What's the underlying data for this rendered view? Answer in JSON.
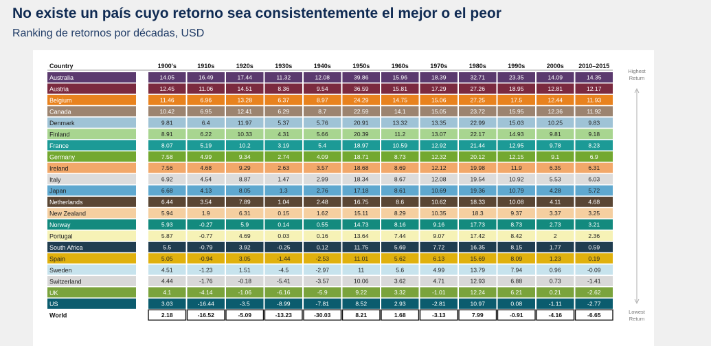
{
  "title": "No existe un país cuyo retorno sea consistentemente el mejor o el peor",
  "subtitle": "Ranking de retornos por décadas, USD",
  "legend": {
    "top": [
      "Highest",
      "Return"
    ],
    "bottom": [
      "Lowest",
      "Return"
    ]
  },
  "chart_data": {
    "type": "table",
    "corner_label": "Country",
    "columns": [
      "1900's",
      "1910s",
      "1920s",
      "1930s",
      "1940s",
      "1950s",
      "1960s",
      "1970s",
      "1980s",
      "1990s",
      "2000s",
      "2010–2015"
    ],
    "rows": [
      {
        "country": "Australia",
        "color": "#5b3a6e",
        "values": [
          14.05,
          16.49,
          17.44,
          11.32,
          12.08,
          39.86,
          15.96,
          18.39,
          32.71,
          23.35,
          14.09,
          14.35
        ]
      },
      {
        "country": "Austria",
        "color": "#7b2a3f",
        "values": [
          12.45,
          11.06,
          14.51,
          8.36,
          9.54,
          36.59,
          15.81,
          17.29,
          27.26,
          18.95,
          12.81,
          12.17
        ]
      },
      {
        "country": "Belgium",
        "color": "#e8821e",
        "values": [
          11.46,
          6.96,
          13.28,
          6.37,
          8.97,
          24.29,
          14.75,
          15.06,
          27.25,
          17.5,
          12.44,
          11.93
        ]
      },
      {
        "country": "Canada",
        "color": "#9c8470",
        "values": [
          10.42,
          6.95,
          12.41,
          6.29,
          8.7,
          22.59,
          14.1,
          15.05,
          23.72,
          15.95,
          12.36,
          11.92
        ]
      },
      {
        "country": "Denmark",
        "color": "#9fc3d6",
        "values": [
          9.81,
          6.4,
          11.97,
          5.37,
          5.76,
          20.91,
          13.32,
          13.35,
          22.99,
          15.03,
          10.25,
          9.83
        ]
      },
      {
        "country": "Finland",
        "color": "#a8d590",
        "values": [
          8.91,
          6.22,
          10.33,
          4.31,
          5.66,
          20.39,
          11.2,
          13.07,
          22.17,
          14.93,
          9.81,
          9.18
        ]
      },
      {
        "country": "France",
        "color": "#1c9a96",
        "values": [
          8.07,
          5.19,
          10.2,
          3.19,
          5.4,
          18.97,
          10.59,
          12.92,
          21.44,
          12.95,
          9.78,
          8.23
        ]
      },
      {
        "country": "Germany",
        "color": "#73a830",
        "values": [
          7.58,
          4.99,
          9.34,
          2.74,
          4.09,
          18.71,
          8.73,
          12.32,
          20.12,
          12.15,
          9.1,
          6.9
        ]
      },
      {
        "country": "Ireland",
        "color": "#f2a86a",
        "values": [
          7.56,
          4.68,
          9.29,
          2.63,
          3.57,
          18.68,
          8.69,
          12.12,
          19.98,
          11.9,
          6.35,
          6.31
        ]
      },
      {
        "country": "Italy",
        "color": "#dcdcdc",
        "values": [
          6.92,
          4.54,
          8.87,
          1.47,
          2.99,
          18.34,
          8.67,
          12.08,
          19.54,
          10.92,
          5.53,
          6.03
        ]
      },
      {
        "country": "Japan",
        "color": "#5fa8cf",
        "values": [
          6.68,
          4.13,
          8.05,
          1.3,
          2.76,
          17.18,
          8.61,
          10.69,
          19.36,
          10.79,
          4.28,
          5.72
        ]
      },
      {
        "country": "Netherlands",
        "color": "#5a4634",
        "values": [
          6.44,
          3.54,
          7.89,
          1.04,
          2.48,
          16.75,
          8.6,
          10.62,
          18.33,
          10.08,
          4.11,
          4.68
        ]
      },
      {
        "country": "New Zealand",
        "color": "#f5cfa0",
        "values": [
          5.94,
          1.9,
          6.31,
          0.15,
          1.62,
          15.11,
          8.29,
          10.35,
          18.3,
          9.37,
          3.37,
          3.25
        ]
      },
      {
        "country": "Norway",
        "color": "#138a7e",
        "values": [
          5.93,
          -0.27,
          5.9,
          0.14,
          0.55,
          14.73,
          8.16,
          9.16,
          17.73,
          8.73,
          2.73,
          3.21
        ]
      },
      {
        "country": "Portugal",
        "color": "#f6f2b6",
        "values": [
          5.87,
          -0.77,
          4.69,
          0.03,
          0.16,
          13.64,
          7.44,
          9.07,
          17.42,
          8.42,
          2,
          2.36
        ]
      },
      {
        "country": "South Africa",
        "color": "#203d50",
        "values": [
          5.5,
          -0.79,
          3.92,
          -0.25,
          0.12,
          11.75,
          5.69,
          7.72,
          16.35,
          8.15,
          1.77,
          0.59
        ]
      },
      {
        "country": "Spain",
        "color": "#e0b10e",
        "values": [
          5.05,
          -0.94,
          3.05,
          -1.44,
          -2.53,
          11.01,
          5.62,
          6.13,
          15.69,
          8.09,
          1.23,
          0.19
        ]
      },
      {
        "country": "Sweden",
        "color": "#c7e3ed",
        "values": [
          4.51,
          -1.23,
          1.51,
          -4.5,
          -2.97,
          11,
          5.6,
          4.99,
          13.79,
          7.94,
          0.96,
          -0.09
        ]
      },
      {
        "country": "Switzerland",
        "color": "#d8d8d8",
        "values": [
          4.44,
          -1.76,
          -0.18,
          -5.41,
          -3.57,
          10.06,
          3.62,
          4.71,
          12.93,
          6.88,
          0.73,
          -1.41
        ]
      },
      {
        "country": "UK",
        "color": "#7aa33c",
        "values": [
          4.1,
          -4.14,
          -1.06,
          -6.16,
          -5.9,
          9.22,
          3.32,
          -1.01,
          12.24,
          6.21,
          0.21,
          -2.62
        ]
      },
      {
        "country": "US",
        "color": "#0b5c6e",
        "values": [
          3.03,
          -16.44,
          -3.5,
          -8.99,
          -7.81,
          8.52,
          2.93,
          -2.81,
          10.97,
          0.08,
          -1.11,
          -2.77
        ]
      },
      {
        "country": "World",
        "color": "#ffffff",
        "values": [
          2.18,
          -16.52,
          -5.09,
          -13.23,
          -30.03,
          8.21,
          1.68,
          -3.13,
          7.99,
          -0.91,
          -4.16,
          -6.65
        ]
      }
    ]
  }
}
